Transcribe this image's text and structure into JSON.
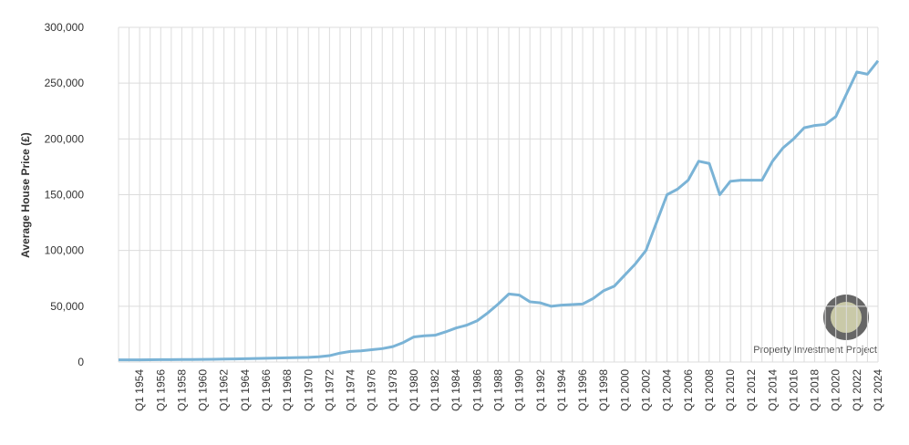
{
  "chart_data": {
    "type": "line",
    "y_label": "Average House Price (£)",
    "watermark": "Property Investment Project",
    "categories": [
      null,
      null,
      "Q1 1954",
      null,
      "Q1 1956",
      null,
      "Q1 1958",
      null,
      "Q1 1960",
      null,
      "Q1 1962",
      null,
      "Q1 1964",
      null,
      "Q1 1966",
      null,
      "Q1 1968",
      null,
      "Q1 1970",
      null,
      "Q1 1972",
      null,
      "Q1 1974",
      null,
      "Q1 1976",
      null,
      "Q1 1978",
      null,
      "Q1 1980",
      null,
      "Q1 1982",
      null,
      "Q1 1984",
      null,
      "Q1 1986",
      null,
      "Q1 1988",
      null,
      "Q1 1990",
      null,
      "Q1 1992",
      null,
      "Q1 1994",
      null,
      "Q1 1996",
      null,
      "Q1 1998",
      null,
      "Q1 2000",
      null,
      "Q1 2002",
      null,
      "Q1 2004",
      null,
      "Q1 2006",
      null,
      "Q1 2008",
      null,
      "Q1 2010",
      null,
      "Q1 2012",
      null,
      "Q1 2014",
      null,
      "Q1 2016",
      null,
      "Q1 2018",
      null,
      "Q1 2020",
      null,
      "Q1 2022",
      null,
      "Q1 2024"
    ],
    "series": [
      {
        "name": "Average House Price",
        "color": "#7ab3d6",
        "values": [
          1900,
          1950,
          1950,
          2000,
          2100,
          2150,
          2200,
          2250,
          2350,
          2500,
          2650,
          2800,
          3000,
          3200,
          3400,
          3550,
          3750,
          4000,
          4200,
          4700,
          5700,
          8000,
          9500,
          10000,
          11000,
          12000,
          13800,
          17500,
          22500,
          23500,
          24000,
          27000,
          30500,
          33000,
          37000,
          44000,
          52000,
          61000,
          60000,
          54000,
          53000,
          50000,
          51000,
          51500,
          52000,
          57000,
          64000,
          68000,
          78000,
          88000,
          100000,
          125000,
          150000,
          155000,
          163000,
          180000,
          178000,
          150000,
          162000,
          163000,
          163000,
          163000,
          180000,
          192000,
          200000,
          210000,
          212000,
          213000,
          220000,
          240000,
          260000,
          258000,
          270000
        ]
      }
    ],
    "ylim": [
      0,
      300000
    ],
    "yticks": [
      0,
      {
        "value": 50000,
        "label": "50,000"
      },
      {
        "value": 100000,
        "label": "100,000"
      },
      {
        "value": 150000,
        "label": "150,000"
      },
      {
        "value": 200000,
        "label": "200,000"
      },
      {
        "value": 250000,
        "label": "250,000"
      },
      {
        "value": 300000,
        "label": "300,000"
      }
    ],
    "grid": true
  }
}
